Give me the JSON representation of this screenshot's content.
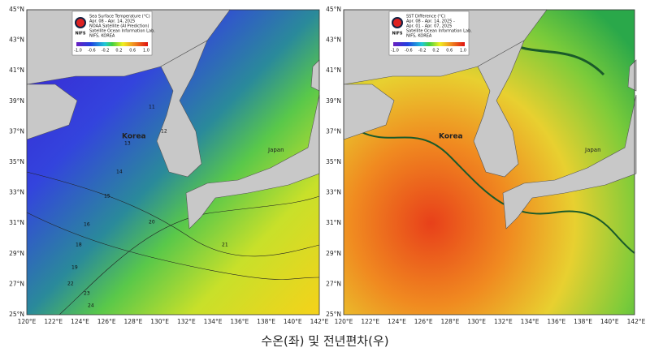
{
  "panels": [
    {
      "lat_labels": [
        "45°N",
        "43°N",
        "41°N",
        "39°N",
        "37°N",
        "35°N",
        "33°N",
        "31°N",
        "29°N",
        "27°N",
        "25°N"
      ],
      "lon_labels": [
        "120°E",
        "122°E",
        "124°E",
        "126°E",
        "128°E",
        "130°E",
        "132°E",
        "134°E",
        "136°E",
        "138°E",
        "140°E",
        "142°E"
      ],
      "legend": {
        "logo_text": "NIFS",
        "lines": [
          "Sea Surface Temperature (°C)",
          "Apr. 08 - Apr. 14, 2025",
          "NOAA Satellite (AI Prediction)",
          "Satellite Ocean Information Lab.",
          "NIFS, KOREA"
        ],
        "scale_labels": [
          "-1.0",
          "-0.6",
          "-0.2",
          "0.2",
          "0.6",
          "1.0"
        ]
      },
      "places": [
        "Korea",
        "Japan"
      ],
      "contour_labels": [
        "11",
        "12",
        "13",
        "14",
        "15",
        "16",
        "18",
        "19",
        "20",
        "21",
        "22",
        "23",
        "24"
      ]
    },
    {
      "lat_labels": [
        "45°N",
        "43°N",
        "41°N",
        "39°N",
        "37°N",
        "35°N",
        "33°N",
        "31°N",
        "29°N",
        "27°N",
        "25°N"
      ],
      "lon_labels": [
        "120°E",
        "122°E",
        "124°E",
        "126°E",
        "128°E",
        "130°E",
        "132°E",
        "134°E",
        "136°E",
        "138°E",
        "140°E",
        "142°E"
      ],
      "legend": {
        "logo_text": "NIFS",
        "lines": [
          "SST Difference (°C)",
          "Apr. 08 - Apr. 14, 2025 -",
          "Apr. 01 - Apr. 07, 2025",
          "Satellite Ocean Information Lab.",
          "NIFS, KOREA"
        ],
        "scale_labels": [
          "-1.0",
          "-0.6",
          "-0.2",
          "0.2",
          "0.6",
          "1.0"
        ]
      },
      "places": [
        "Korea",
        "Japan"
      ],
      "contour_labels": []
    }
  ],
  "caption": "수온(좌) 및 전년편차(우)"
}
